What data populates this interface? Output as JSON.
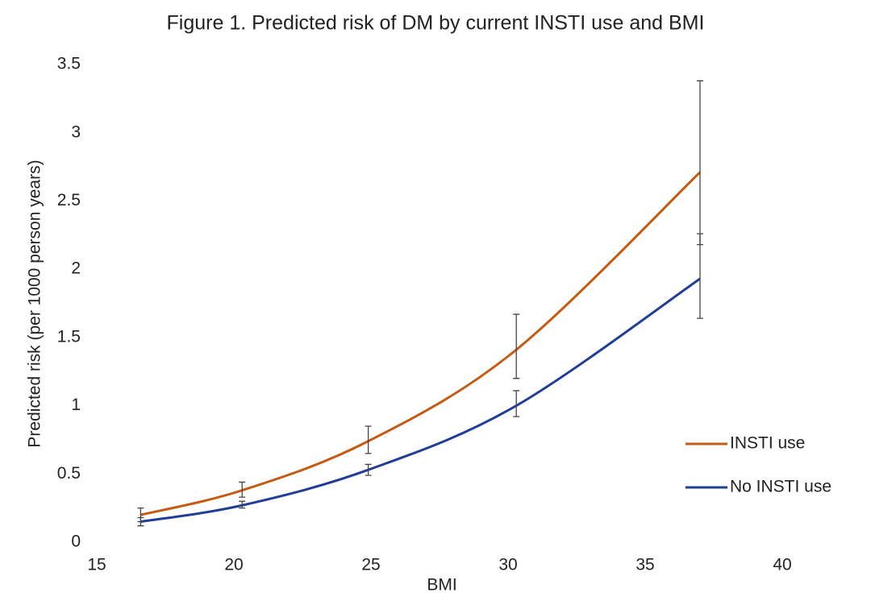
{
  "chart_data": {
    "type": "line",
    "title": "Figure 1. Predicted risk of DM by current INSTI use and BMI",
    "x_label": "BMI",
    "y_label": "Predicted risk (per 1000 person years)",
    "x": [
      16.6,
      20.3,
      24.9,
      30.3,
      37.0
    ],
    "series": [
      {
        "name": "INSTI use",
        "color": "#c55a11",
        "values": [
          0.2,
          0.38,
          0.74,
          1.41,
          2.71
        ],
        "lower": [
          0.15,
          0.33,
          0.65,
          1.2,
          2.18
        ],
        "upper": [
          0.25,
          0.44,
          0.85,
          1.67,
          3.38
        ]
      },
      {
        "name": "No INSTI use",
        "color": "#203d98",
        "values": [
          0.15,
          0.27,
          0.53,
          1.0,
          1.93
        ],
        "lower": [
          0.12,
          0.25,
          0.49,
          0.92,
          1.64
        ],
        "upper": [
          0.18,
          0.3,
          0.57,
          1.11,
          2.26
        ]
      }
    ],
    "xlim": [
      15,
      40
    ],
    "xticks": [
      15,
      20,
      25,
      30,
      35,
      40
    ],
    "ylim": [
      0,
      3.5
    ],
    "yticks": [
      0,
      0.5,
      1,
      1.5,
      2,
      2.5,
      3,
      3.5
    ],
    "legend": "right"
  }
}
